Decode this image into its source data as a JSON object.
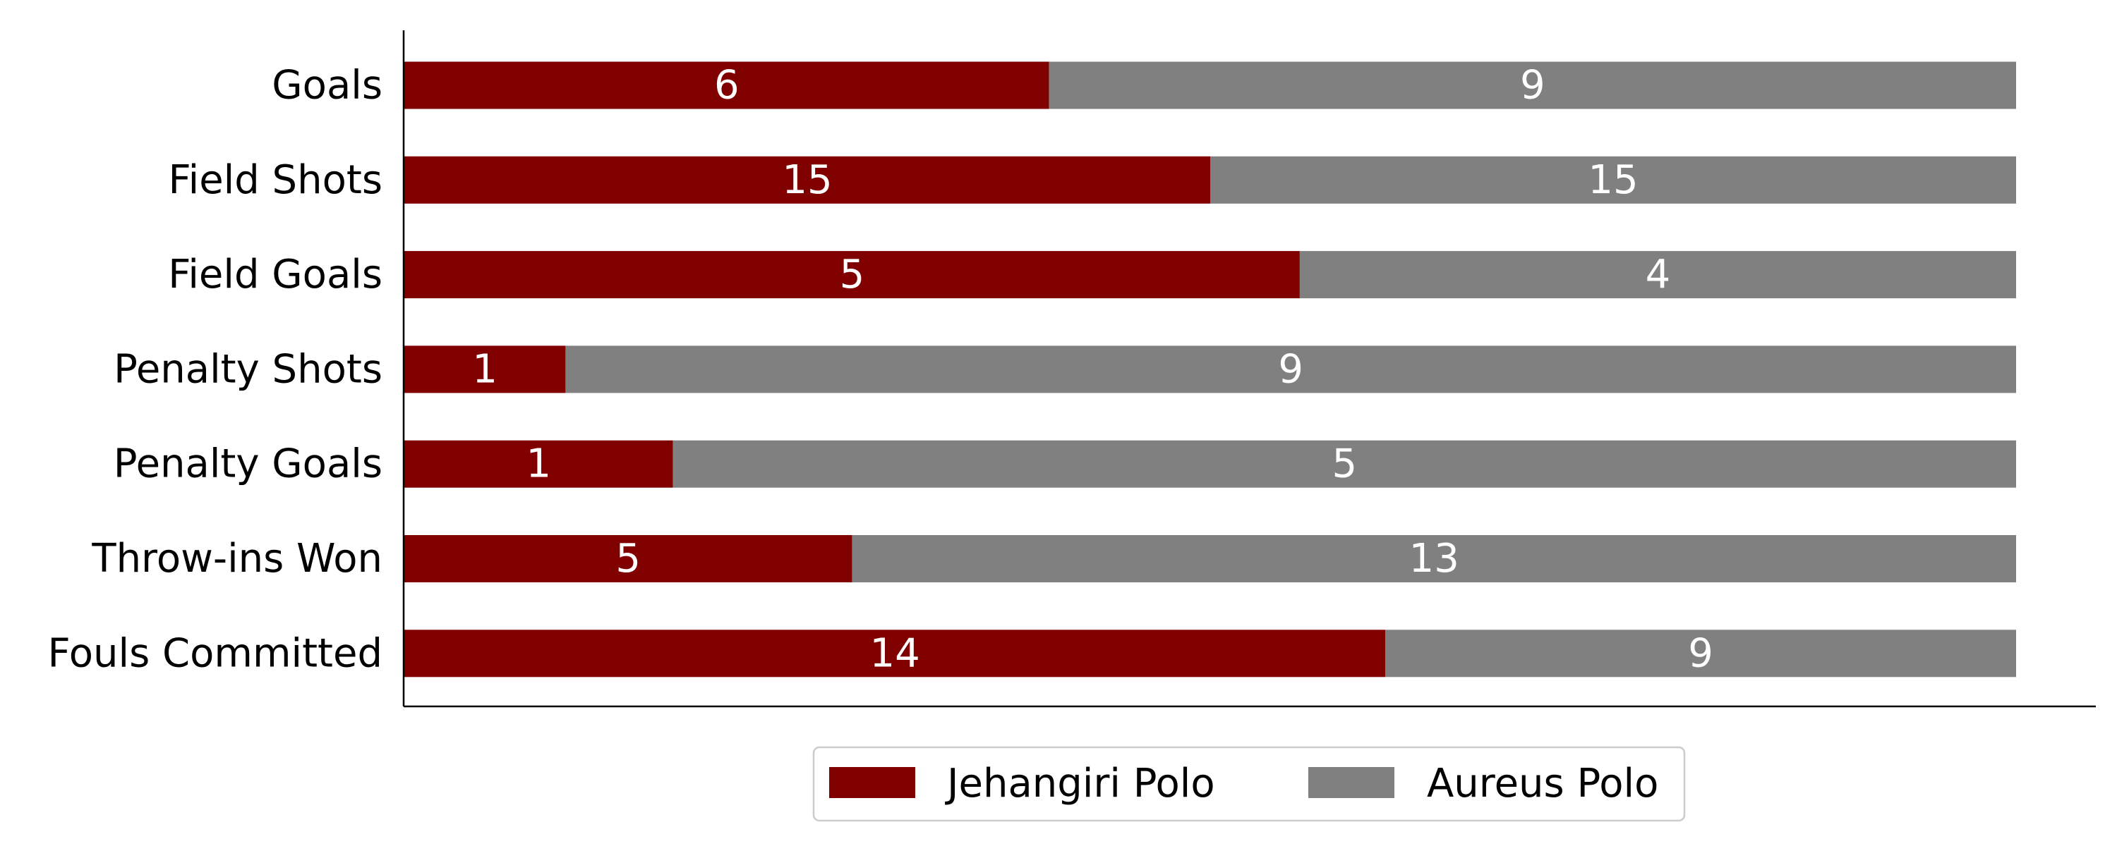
{
  "chart_data": {
    "type": "bar",
    "orientation": "horizontal",
    "stacked": true,
    "normalized": true,
    "categories": [
      "Goals",
      "Field Shots",
      "Field Goals",
      "Penalty Shots",
      "Penalty Goals",
      "Throw-ins Won",
      "Fouls Committed"
    ],
    "series": [
      {
        "name": "Jehangiri Polo",
        "color": "#800000",
        "values": [
          6,
          15,
          5,
          1,
          1,
          5,
          14
        ]
      },
      {
        "name": "Aureus Polo",
        "color": "#808080",
        "values": [
          9,
          15,
          4,
          9,
          5,
          13,
          9
        ]
      }
    ],
    "title": "",
    "xlabel": "",
    "ylabel": "",
    "grid": false,
    "legend_position": "bottom-center"
  }
}
